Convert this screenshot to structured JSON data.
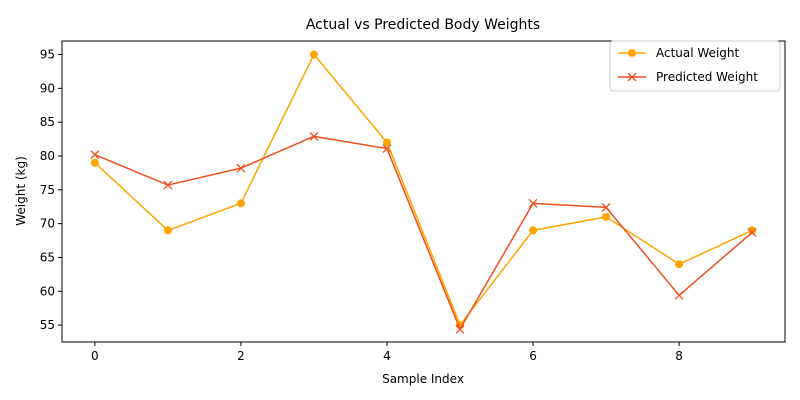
{
  "chart_data": {
    "type": "line",
    "title": "Actual vs Predicted Body Weights",
    "xlabel": "Sample Index",
    "ylabel": "Weight (kg)",
    "xlim": [
      -0.45,
      9.45
    ],
    "ylim": [
      52.5,
      97
    ],
    "xticks": [
      0,
      2,
      4,
      6,
      8
    ],
    "yticks": [
      55,
      60,
      65,
      70,
      75,
      80,
      85,
      90,
      95
    ],
    "grid": false,
    "legend_position": "top-right",
    "x": [
      0,
      1,
      2,
      3,
      4,
      5,
      6,
      7,
      8,
      9
    ],
    "series": [
      {
        "name": "Actual Weight",
        "color": "#ffa500",
        "marker": "circle",
        "values": [
          79,
          69,
          73,
          95,
          82,
          55,
          69,
          71,
          64,
          69
        ]
      },
      {
        "name": "Predicted Weight",
        "color": "#f0501e",
        "marker": "x",
        "values": [
          80.2,
          75.7,
          78.2,
          82.9,
          81.1,
          54.4,
          73.0,
          72.4,
          59.4,
          68.7
        ]
      }
    ]
  }
}
